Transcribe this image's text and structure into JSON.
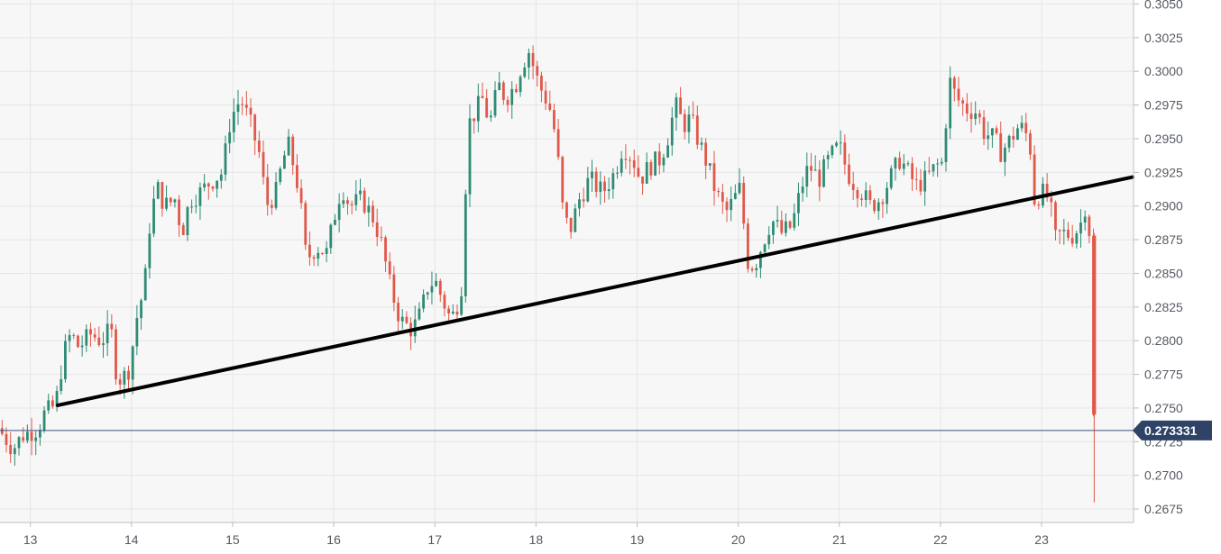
{
  "chart_data": {
    "type": "candlestick",
    "x_ticks": [
      "13",
      "14",
      "15",
      "16",
      "17",
      "18",
      "19",
      "20",
      "21",
      "22",
      "23"
    ],
    "y_ticks": [
      "0.3050",
      "0.3025",
      "0.3000",
      "0.2975",
      "0.2950",
      "0.2925",
      "0.2900",
      "0.2875",
      "0.2850",
      "0.2825",
      "0.2800",
      "0.2775",
      "0.2750",
      "0.2725",
      "0.2700",
      "0.2675"
    ],
    "ylim": [
      0.2665,
      0.3053
    ],
    "xlim": [
      12.7,
      23.9
    ],
    "grid": true,
    "current_price": {
      "label": "0.273331",
      "value": 0.273331
    },
    "trendline": {
      "x": [
        13.27,
        23.9
      ],
      "y": [
        0.2752,
        0.29215
      ]
    },
    "colors": {
      "up": "#2e8b74",
      "down": "#e0584a",
      "trendline": "#000000",
      "price_line": "#3c4f7a",
      "price_badge": "#2f4366",
      "grid": "#e6e6e6",
      "background": "#f7f7f7"
    },
    "price_path": [
      [
        12.7,
        0.2735
      ],
      [
        12.85,
        0.272
      ],
      [
        12.95,
        0.273
      ],
      [
        13.1,
        0.2735
      ],
      [
        13.15,
        0.2745
      ],
      [
        13.27,
        0.2752
      ],
      [
        13.35,
        0.279
      ],
      [
        13.42,
        0.2805
      ],
      [
        13.5,
        0.2795
      ],
      [
        13.62,
        0.2805
      ],
      [
        13.72,
        0.28
      ],
      [
        13.82,
        0.2808
      ],
      [
        13.86,
        0.278
      ],
      [
        13.92,
        0.277
      ],
      [
        14.0,
        0.278
      ],
      [
        14.08,
        0.282
      ],
      [
        14.15,
        0.284
      ],
      [
        14.2,
        0.2885
      ],
      [
        14.27,
        0.2915
      ],
      [
        14.35,
        0.29
      ],
      [
        14.45,
        0.2905
      ],
      [
        14.52,
        0.288
      ],
      [
        14.6,
        0.2905
      ],
      [
        14.7,
        0.291
      ],
      [
        14.8,
        0.2918
      ],
      [
        14.92,
        0.2925
      ],
      [
        15.0,
        0.2965
      ],
      [
        15.1,
        0.298
      ],
      [
        15.2,
        0.296
      ],
      [
        15.3,
        0.2935
      ],
      [
        15.35,
        0.29
      ],
      [
        15.45,
        0.291
      ],
      [
        15.52,
        0.2935
      ],
      [
        15.58,
        0.2945
      ],
      [
        15.68,
        0.291
      ],
      [
        15.75,
        0.286
      ],
      [
        15.85,
        0.287
      ],
      [
        15.95,
        0.2865
      ],
      [
        16.05,
        0.29
      ],
      [
        16.1,
        0.2915
      ],
      [
        16.18,
        0.29
      ],
      [
        16.3,
        0.2905
      ],
      [
        16.42,
        0.289
      ],
      [
        16.5,
        0.287
      ],
      [
        16.58,
        0.284
      ],
      [
        16.68,
        0.2815
      ],
      [
        16.8,
        0.2808
      ],
      [
        16.88,
        0.282
      ],
      [
        16.95,
        0.284
      ],
      [
        17.02,
        0.2845
      ],
      [
        17.1,
        0.283
      ],
      [
        17.18,
        0.2815
      ],
      [
        17.28,
        0.2835
      ],
      [
        17.35,
        0.296
      ],
      [
        17.42,
        0.297
      ],
      [
        17.5,
        0.298
      ],
      [
        17.56,
        0.296
      ],
      [
        17.65,
        0.299
      ],
      [
        17.72,
        0.298
      ],
      [
        17.82,
        0.299
      ],
      [
        17.88,
        0.3005
      ],
      [
        17.95,
        0.3015
      ],
      [
        18.05,
        0.299
      ],
      [
        18.15,
        0.2975
      ],
      [
        18.22,
        0.295
      ],
      [
        18.28,
        0.29
      ],
      [
        18.35,
        0.288
      ],
      [
        18.45,
        0.2905
      ],
      [
        18.55,
        0.292
      ],
      [
        18.68,
        0.291
      ],
      [
        18.8,
        0.2925
      ],
      [
        18.88,
        0.2945
      ],
      [
        18.98,
        0.2935
      ],
      [
        19.05,
        0.292
      ],
      [
        19.15,
        0.293
      ],
      [
        19.25,
        0.2935
      ],
      [
        19.32,
        0.295
      ],
      [
        19.4,
        0.2975
      ],
      [
        19.48,
        0.296
      ],
      [
        19.55,
        0.2965
      ],
      [
        19.62,
        0.295
      ],
      [
        19.72,
        0.293
      ],
      [
        19.8,
        0.291
      ],
      [
        19.9,
        0.2895
      ],
      [
        19.98,
        0.2905
      ],
      [
        20.05,
        0.2915
      ],
      [
        20.1,
        0.286
      ],
      [
        20.18,
        0.2855
      ],
      [
        20.25,
        0.287
      ],
      [
        20.35,
        0.289
      ],
      [
        20.45,
        0.288
      ],
      [
        20.55,
        0.2885
      ],
      [
        20.65,
        0.2915
      ],
      [
        20.72,
        0.293
      ],
      [
        20.82,
        0.292
      ],
      [
        20.92,
        0.2935
      ],
      [
        21.02,
        0.2945
      ],
      [
        21.1,
        0.2925
      ],
      [
        21.18,
        0.2915
      ],
      [
        21.25,
        0.291
      ],
      [
        21.32,
        0.29
      ],
      [
        21.42,
        0.2905
      ],
      [
        21.52,
        0.292
      ],
      [
        21.62,
        0.2935
      ],
      [
        21.7,
        0.2925
      ],
      [
        21.78,
        0.2915
      ],
      [
        21.88,
        0.292
      ],
      [
        21.98,
        0.293
      ],
      [
        22.05,
        0.2932
      ],
      [
        22.1,
        0.2995
      ],
      [
        22.18,
        0.298
      ],
      [
        22.28,
        0.2972
      ],
      [
        22.38,
        0.297
      ],
      [
        22.45,
        0.2955
      ],
      [
        22.55,
        0.295
      ],
      [
        22.62,
        0.294
      ],
      [
        22.72,
        0.295
      ],
      [
        22.8,
        0.296
      ],
      [
        22.9,
        0.295
      ],
      [
        22.95,
        0.2905
      ],
      [
        23.02,
        0.291
      ],
      [
        23.1,
        0.2905
      ],
      [
        23.15,
        0.2875
      ],
      [
        23.22,
        0.288
      ],
      [
        23.32,
        0.2878
      ],
      [
        23.4,
        0.2885
      ],
      [
        23.45,
        0.29
      ],
      [
        23.5,
        0.2878
      ],
      [
        23.52,
        0.275
      ],
      [
        23.55,
        0.2735
      ]
    ]
  }
}
